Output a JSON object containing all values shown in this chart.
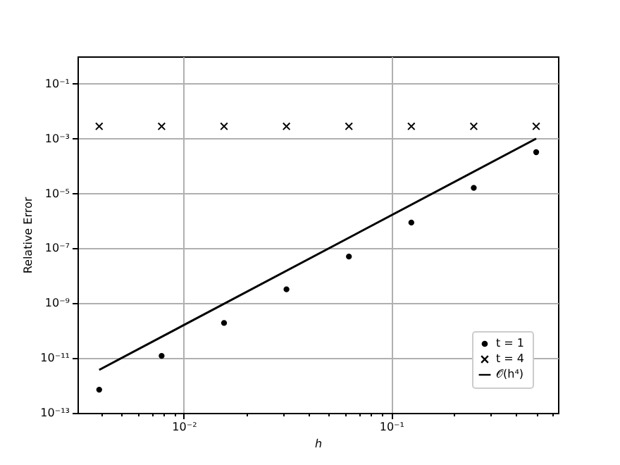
{
  "chart_data": {
    "type": "scatter",
    "xlabel": "h",
    "ylabel": "Relative Error",
    "x": [
      0.00390625,
      0.0078125,
      0.015625,
      0.03125,
      0.0625,
      0.125,
      0.25,
      0.5
    ],
    "series": [
      {
        "name": "t = 1",
        "color": "#000000",
        "marker": "circle",
        "values": [
          7e-13,
          1.2e-11,
          1.9e-10,
          3.2e-09,
          5e-08,
          8.7e-07,
          1.6e-05,
          0.00032
        ]
      },
      {
        "name": "t = 4",
        "color": "#000000",
        "marker": "cross",
        "values": [
          0.0028,
          0.0028,
          0.0028,
          0.0028,
          0.0028,
          0.0028,
          0.0028,
          0.0028
        ]
      },
      {
        "name": "𝒪(h⁴)",
        "type": "line",
        "color": "#000000",
        "line_style": "solid",
        "x": [
          0.00390625,
          0.5
        ],
        "values": [
          3.7e-12,
          0.001
        ]
      }
    ],
    "log": "xy",
    "xlim": [
      0.00307,
      0.637
    ],
    "ylim": [
      1e-13,
      1
    ],
    "xticks": [
      {
        "value": 0.004,
        "label": null
      },
      {
        "value": 0.005,
        "label": null
      },
      {
        "value": 0.006,
        "label": null
      },
      {
        "value": 0.007,
        "label": null
      },
      {
        "value": 0.008,
        "label": null
      },
      {
        "value": 0.009,
        "label": null
      },
      {
        "value": 0.01,
        "label": "10⁻²"
      },
      {
        "value": 0.02,
        "label": null
      },
      {
        "value": 0.03,
        "label": null
      },
      {
        "value": 0.04,
        "label": null
      },
      {
        "value": 0.05,
        "label": null
      },
      {
        "value": 0.06,
        "label": null
      },
      {
        "value": 0.07,
        "label": null
      },
      {
        "value": 0.08,
        "label": null
      },
      {
        "value": 0.09,
        "label": null
      },
      {
        "value": 0.1,
        "label": "10⁻¹"
      },
      {
        "value": 0.2,
        "label": null
      },
      {
        "value": 0.3,
        "label": null
      },
      {
        "value": 0.4,
        "label": null
      },
      {
        "value": 0.5,
        "label": null
      },
      {
        "value": 0.6,
        "label": null
      }
    ],
    "yticks": [
      {
        "value": 1e-13,
        "label": "10⁻¹³"
      },
      {
        "value": 1e-11,
        "label": "10⁻¹¹"
      },
      {
        "value": 1e-09,
        "label": "10⁻⁹"
      },
      {
        "value": 1e-07,
        "label": "10⁻⁷"
      },
      {
        "value": 1e-05,
        "label": "10⁻⁵"
      },
      {
        "value": 0.001,
        "label": "10⁻³"
      },
      {
        "value": 0.1,
        "label": "10⁻¹"
      }
    ],
    "grid": true,
    "legend": "bottom right"
  }
}
